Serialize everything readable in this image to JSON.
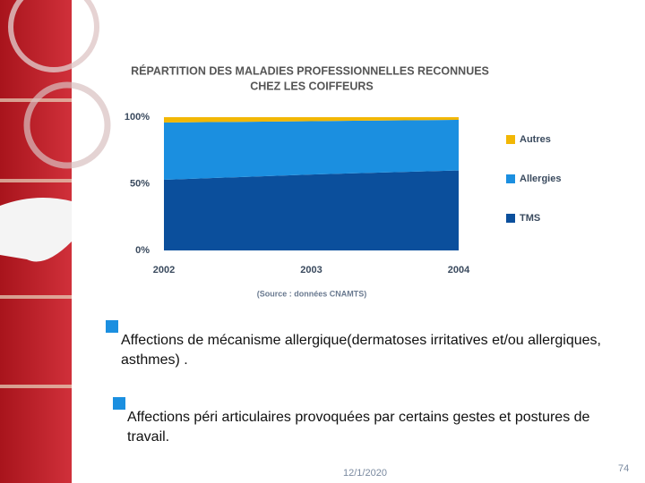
{
  "chart_data": {
    "type": "stacked_area",
    "title": [
      "RÉPARTITION DES MALADIES PROFESSIONNELLES RECONNUES",
      "CHEZ LES COIFFEURS"
    ],
    "x": [
      2002,
      2003,
      2004
    ],
    "xlim": [
      2002,
      2004
    ],
    "xticks": [
      2002,
      2003,
      2004
    ],
    "ylim": [
      0,
      100
    ],
    "yticks": [
      {
        "value": 0,
        "label": "0%"
      },
      {
        "value": 50,
        "label": "50%"
      },
      {
        "value": 100,
        "label": "100%"
      }
    ],
    "series": [
      {
        "name": "TMS",
        "color": "#0b4f9c",
        "values": [
          53,
          57,
          60
        ]
      },
      {
        "name": "Allergies",
        "color": "#1b8fe0",
        "values": [
          43,
          40,
          38
        ]
      },
      {
        "name": "Autres",
        "color": "#f2b705",
        "values": [
          4,
          3,
          2
        ]
      }
    ],
    "note": "(Source : données CNAMTS)"
  },
  "bullets": [
    "Affections de mécanisme allergique(dermatoses irritatives et/ou allergiques, asthmes) .",
    "Affections péri articulaires provoquées par certains gestes et postures de travail."
  ],
  "footer": {
    "date": "12/1/2020",
    "page": "74"
  }
}
